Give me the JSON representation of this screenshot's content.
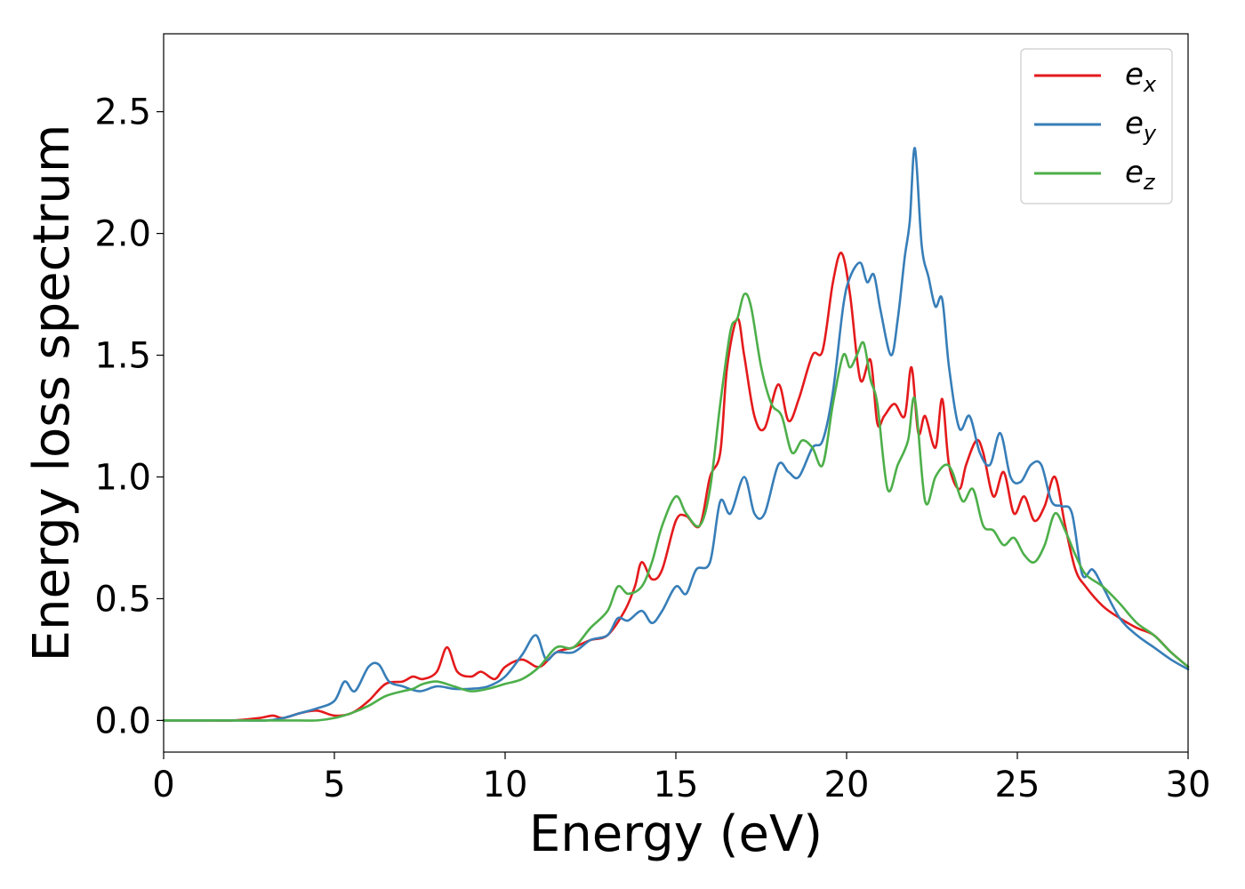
{
  "chart_data": {
    "type": "line",
    "xlabel": "Energy (eV)",
    "ylabel": "Energy loss spectrum",
    "xlim": [
      0,
      30
    ],
    "ylim": [
      -0.13,
      2.82
    ],
    "xticks": [
      0,
      5,
      10,
      15,
      20,
      25,
      30
    ],
    "xtick_labels": [
      "0",
      "5",
      "10",
      "15",
      "20",
      "25",
      "30"
    ],
    "yticks": [
      0.0,
      0.5,
      1.0,
      1.5,
      2.0,
      2.5
    ],
    "ytick_labels": [
      "0.0",
      "0.5",
      "1.0",
      "1.5",
      "2.0",
      "2.5"
    ],
    "grid": false,
    "legend_position": "top-right",
    "series": [
      {
        "name": "e_x",
        "legend_base": "e",
        "legend_sub": "x",
        "color": "#e41a1c",
        "x": [
          0,
          1,
          2,
          2.8,
          3.2,
          3.5,
          4.0,
          4.5,
          5.0,
          5.5,
          6.0,
          6.5,
          7.0,
          7.3,
          7.6,
          8.0,
          8.3,
          8.6,
          9.0,
          9.3,
          9.7,
          10.0,
          10.5,
          11.0,
          11.5,
          12.0,
          12.5,
          13.0,
          13.5,
          13.8,
          14.0,
          14.3,
          14.6,
          15.0,
          15.3,
          15.7,
          16.0,
          16.3,
          16.5,
          16.8,
          17.0,
          17.3,
          17.6,
          18.0,
          18.3,
          18.6,
          19.0,
          19.3,
          19.6,
          19.85,
          20.1,
          20.4,
          20.7,
          20.9,
          21.1,
          21.4,
          21.7,
          21.9,
          22.1,
          22.3,
          22.6,
          22.8,
          23.0,
          23.3,
          23.5,
          23.8,
          24.0,
          24.3,
          24.6,
          24.9,
          25.2,
          25.5,
          25.8,
          26.1,
          26.4,
          26.7,
          27.0,
          27.5,
          28.0,
          28.5,
          29.0,
          29.5,
          30.0
        ],
        "y": [
          0,
          0,
          0,
          0.01,
          0.02,
          0.01,
          0.03,
          0.04,
          0.02,
          0.03,
          0.08,
          0.15,
          0.16,
          0.18,
          0.17,
          0.2,
          0.3,
          0.2,
          0.18,
          0.2,
          0.17,
          0.22,
          0.25,
          0.22,
          0.28,
          0.3,
          0.33,
          0.35,
          0.45,
          0.55,
          0.65,
          0.58,
          0.62,
          0.82,
          0.84,
          0.8,
          1.0,
          1.1,
          1.45,
          1.65,
          1.5,
          1.25,
          1.2,
          1.38,
          1.23,
          1.32,
          1.5,
          1.52,
          1.8,
          1.92,
          1.75,
          1.4,
          1.48,
          1.22,
          1.25,
          1.3,
          1.25,
          1.45,
          1.18,
          1.25,
          1.12,
          1.32,
          1.05,
          0.95,
          1.05,
          1.15,
          1.1,
          0.92,
          1.02,
          0.85,
          0.92,
          0.82,
          0.88,
          1.0,
          0.8,
          0.62,
          0.55,
          0.47,
          0.42,
          0.38,
          0.35,
          0.28,
          0.22
        ]
      },
      {
        "name": "e_y",
        "legend_base": "e",
        "legend_sub": "y",
        "color": "#377eb8",
        "x": [
          0,
          1,
          2,
          3,
          3.5,
          4.0,
          4.5,
          5.0,
          5.3,
          5.6,
          6.0,
          6.3,
          6.6,
          7.0,
          7.5,
          8.0,
          8.5,
          9.0,
          9.5,
          10.0,
          10.5,
          10.9,
          11.2,
          11.5,
          12.0,
          12.5,
          13.0,
          13.3,
          13.6,
          14.0,
          14.3,
          14.6,
          15.0,
          15.3,
          15.6,
          16.0,
          16.3,
          16.6,
          17.0,
          17.3,
          17.6,
          18.0,
          18.3,
          18.6,
          19.0,
          19.3,
          19.6,
          19.9,
          20.1,
          20.4,
          20.6,
          20.8,
          21.0,
          21.3,
          21.5,
          21.7,
          21.85,
          22.0,
          22.2,
          22.4,
          22.6,
          22.8,
          23.0,
          23.3,
          23.6,
          23.9,
          24.2,
          24.5,
          24.8,
          25.1,
          25.4,
          25.7,
          26.0,
          26.3,
          26.6,
          26.9,
          27.2,
          27.5,
          28.0,
          28.5,
          29.0,
          29.5,
          30.0
        ],
        "y": [
          0,
          0,
          0,
          0,
          0.01,
          0.03,
          0.05,
          0.08,
          0.16,
          0.12,
          0.22,
          0.23,
          0.16,
          0.14,
          0.12,
          0.14,
          0.13,
          0.13,
          0.14,
          0.18,
          0.27,
          0.35,
          0.25,
          0.28,
          0.28,
          0.33,
          0.35,
          0.42,
          0.41,
          0.45,
          0.4,
          0.45,
          0.55,
          0.52,
          0.62,
          0.65,
          0.9,
          0.85,
          1.0,
          0.85,
          0.85,
          1.05,
          1.02,
          1.0,
          1.12,
          1.15,
          1.35,
          1.7,
          1.82,
          1.88,
          1.8,
          1.83,
          1.68,
          1.5,
          1.65,
          1.9,
          2.05,
          2.35,
          1.95,
          1.82,
          1.7,
          1.73,
          1.45,
          1.2,
          1.25,
          1.1,
          1.05,
          1.18,
          1.0,
          0.98,
          1.05,
          1.05,
          0.9,
          0.88,
          0.85,
          0.6,
          0.62,
          0.55,
          0.42,
          0.35,
          0.3,
          0.25,
          0.21
        ]
      },
      {
        "name": "e_z",
        "legend_base": "e",
        "legend_sub": "z",
        "color": "#4daf4a",
        "x": [
          0,
          1,
          2,
          3,
          4,
          4.5,
          5.0,
          5.5,
          6.0,
          6.5,
          7.0,
          7.3,
          7.6,
          8.0,
          8.5,
          9.0,
          9.5,
          10.0,
          10.5,
          11.0,
          11.5,
          12.0,
          12.5,
          13.0,
          13.3,
          13.6,
          14.0,
          14.3,
          14.6,
          15.0,
          15.3,
          15.7,
          16.0,
          16.3,
          16.6,
          16.8,
          17.0,
          17.2,
          17.5,
          17.8,
          18.1,
          18.4,
          18.7,
          19.0,
          19.3,
          19.6,
          19.9,
          20.1,
          20.3,
          20.5,
          20.7,
          20.9,
          21.2,
          21.5,
          21.8,
          22.0,
          22.3,
          22.6,
          22.9,
          23.1,
          23.4,
          23.7,
          24.0,
          24.3,
          24.6,
          24.9,
          25.2,
          25.5,
          25.8,
          26.1,
          26.4,
          26.7,
          27.0,
          27.5,
          28.0,
          28.5,
          29.0,
          29.5,
          30.0
        ],
        "y": [
          0,
          0,
          0,
          0,
          0,
          0,
          0.01,
          0.03,
          0.06,
          0.1,
          0.12,
          0.13,
          0.15,
          0.16,
          0.14,
          0.12,
          0.13,
          0.15,
          0.17,
          0.22,
          0.3,
          0.3,
          0.38,
          0.45,
          0.55,
          0.52,
          0.55,
          0.65,
          0.8,
          0.92,
          0.85,
          0.8,
          0.95,
          1.3,
          1.6,
          1.65,
          1.75,
          1.7,
          1.45,
          1.3,
          1.25,
          1.1,
          1.15,
          1.12,
          1.05,
          1.3,
          1.5,
          1.45,
          1.5,
          1.55,
          1.4,
          1.3,
          0.95,
          1.05,
          1.15,
          1.32,
          0.9,
          1.0,
          1.05,
          1.02,
          0.9,
          0.95,
          0.8,
          0.78,
          0.72,
          0.75,
          0.68,
          0.65,
          0.72,
          0.85,
          0.78,
          0.68,
          0.6,
          0.55,
          0.48,
          0.4,
          0.35,
          0.28,
          0.22
        ]
      }
    ]
  }
}
